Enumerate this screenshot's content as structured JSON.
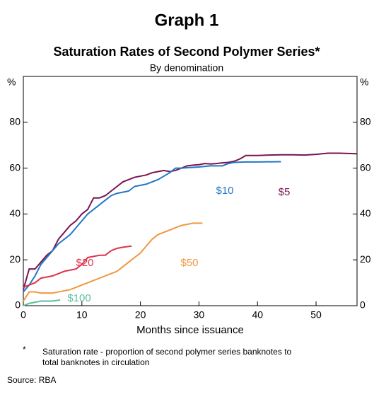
{
  "chart_data": {
    "type": "line",
    "title": "Graph 1",
    "subtitle": "Saturation Rates of Second Polymer Series*",
    "caption": "By denomination",
    "y_label": "%",
    "y2_label": "%",
    "x_label": "Months since issuance",
    "xlim": [
      0,
      57
    ],
    "xticks": [
      0,
      10,
      20,
      30,
      40,
      50
    ],
    "ylim": [
      0,
      100
    ],
    "yticks": [
      0,
      20,
      40,
      60,
      80
    ],
    "grid": false,
    "series": [
      {
        "name": "$5",
        "color": "#7b1450",
        "x": [
          0,
          1,
          2,
          3,
          4,
          5,
          6,
          7,
          8,
          9,
          10,
          11,
          12,
          13,
          14,
          15,
          16,
          17,
          18,
          19,
          20,
          21,
          22,
          23,
          24,
          25,
          26,
          27,
          28,
          29,
          30,
          31,
          32,
          33,
          34,
          35,
          36,
          37,
          38,
          39,
          40,
          42,
          44,
          46,
          48,
          50,
          52,
          54,
          57
        ],
        "values": [
          7,
          16,
          16,
          19,
          22,
          24,
          29,
          32,
          35,
          37,
          40,
          42,
          47,
          47,
          48,
          50,
          52,
          54,
          55,
          56,
          56.5,
          57,
          58,
          58.5,
          59,
          58.5,
          59,
          60,
          61,
          61.3,
          61.5,
          62,
          61.8,
          62,
          62.3,
          62.5,
          63,
          64,
          65.5,
          65.5,
          65.5,
          65.7,
          65.8,
          65.8,
          65.7,
          66,
          66.5,
          66.5,
          66.3
        ]
      },
      {
        "name": "$10",
        "color": "#2178c4",
        "x": [
          0,
          1,
          2,
          3,
          4,
          5,
          6,
          7,
          8,
          9,
          10,
          11,
          12,
          13,
          14,
          15,
          16,
          17,
          18,
          19,
          20,
          21,
          22,
          23,
          24,
          25,
          26,
          27,
          28,
          30,
          32,
          34,
          35,
          36,
          38,
          40,
          44
        ],
        "values": [
          6,
          9,
          13,
          18,
          21,
          24,
          27,
          29,
          31,
          34,
          37,
          40,
          42,
          44,
          46,
          48,
          49,
          49.5,
          50,
          52,
          52.5,
          53,
          54,
          55,
          56.5,
          58,
          60,
          60,
          60.2,
          60.5,
          61,
          61,
          62,
          62.5,
          62.7,
          62.7,
          62.8
        ]
      },
      {
        "name": "$20",
        "color": "#e0334c",
        "x": [
          0,
          1,
          2,
          3,
          4,
          5,
          6,
          7,
          8,
          9,
          10,
          11,
          12,
          13,
          14,
          15,
          16,
          17,
          18.5
        ],
        "values": [
          8,
          9,
          10,
          12,
          12.5,
          13,
          14,
          15,
          15.5,
          16,
          18,
          21,
          21.5,
          22,
          22,
          24,
          25,
          25.5,
          26
        ]
      },
      {
        "name": "$50",
        "color": "#f0973f",
        "x": [
          0,
          1,
          2,
          3,
          4,
          5,
          6,
          7,
          8,
          9,
          10,
          11,
          12,
          13,
          14,
          15,
          16,
          17,
          18,
          19,
          20,
          21,
          22,
          23,
          24,
          25,
          26,
          27,
          28,
          29,
          30.6
        ],
        "values": [
          2,
          6,
          6,
          5.5,
          5.5,
          5.5,
          6,
          6.5,
          7,
          8,
          9,
          10,
          11,
          12,
          13,
          14,
          15,
          17,
          19,
          21,
          23,
          26,
          29,
          31,
          32,
          33,
          34,
          35,
          35.5,
          36,
          36
        ]
      },
      {
        "name": "$100",
        "color": "#5bbf9f",
        "x": [
          0,
          1,
          2,
          3,
          4,
          5,
          6.3
        ],
        "values": [
          0,
          1,
          1.5,
          2,
          2,
          2,
          2.5
        ]
      }
    ],
    "footnote_marker": "*",
    "footnote": [
      "Saturation rate - proportion of second polymer series banknotes to",
      "total banknotes in circulation"
    ],
    "source": "Source:   RBA"
  }
}
